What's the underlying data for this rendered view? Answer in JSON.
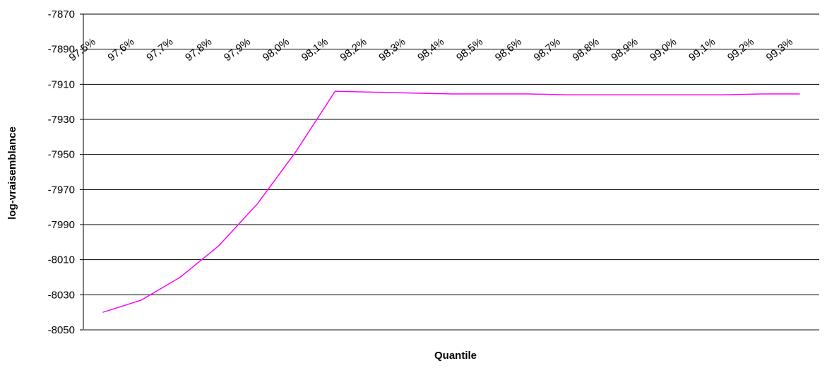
{
  "chart_data": {
    "type": "line",
    "x_label": "Quantile",
    "y_label": "log-vraisemblance",
    "categories": [
      "97,5%",
      "97,6%",
      "97,7%",
      "97,8%",
      "97,9%",
      "98,0%",
      "98,1%",
      "98,2%",
      "98,3%",
      "98,4%",
      "98,5%",
      "98,6%",
      "98,7%",
      "98,8%",
      "98,9%",
      "99,0%",
      "99,1%",
      "99,2%",
      "99,3%"
    ],
    "series": [
      {
        "color": "#ff00ff",
        "values": [
          -8040,
          -8033,
          -8020,
          -8002,
          -7978,
          -7948,
          -7914,
          -7914.5,
          -7915,
          -7915.5,
          -7915.5,
          -7915.5,
          -7916,
          -7916,
          -7916,
          -7916,
          -7916,
          -7915.5,
          -7915.5
        ]
      }
    ],
    "ylim": [
      -8050,
      -7870
    ],
    "yticks": [
      -8050,
      -8030,
      -8010,
      -7990,
      -7970,
      -7950,
      -7930,
      -7910,
      -7890,
      -7870
    ],
    "grid": true
  }
}
